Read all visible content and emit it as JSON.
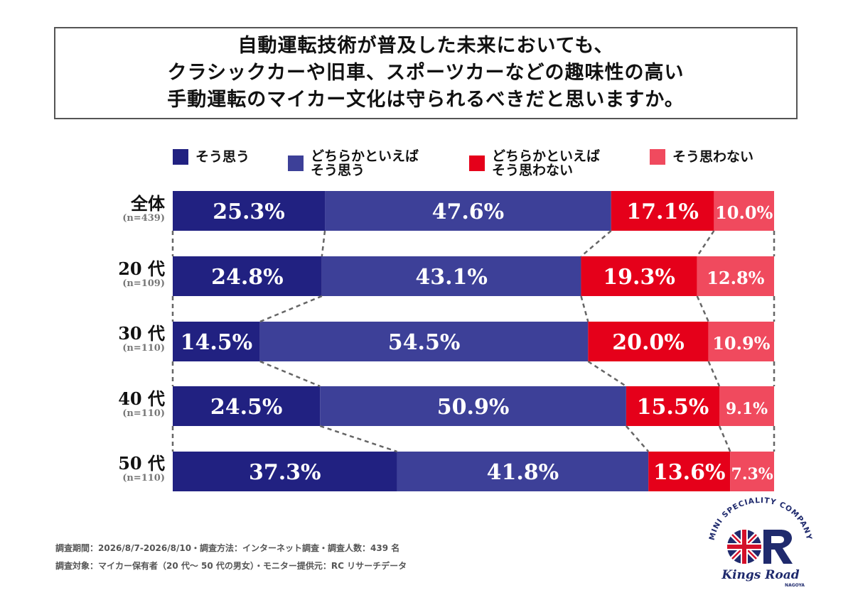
{
  "title_lines": [
    "自動運転技術が普及した未来においても、",
    "クラシックカーや旧車、スポーツカーなどの趣味性の高い",
    "手動運転のマイカー文化は守られるべきだと思いますか。"
  ],
  "legend": [
    {
      "label": "そう思う",
      "color": "#212181"
    },
    {
      "label": "どちらかといえば\nそう思う",
      "color": "#3d4098"
    },
    {
      "label": "どちらかといえば\nそう思わない",
      "color": "#e5001a"
    },
    {
      "label": "そう思わない",
      "color": "#f04a5e"
    }
  ],
  "chart_data": {
    "type": "bar",
    "orientation": "horizontal-stacked-100",
    "categories": [
      "全体",
      "20 代",
      "30 代",
      "40 代",
      "50 代"
    ],
    "sample_sizes": [
      "(n=439)",
      "(n=109)",
      "(n=110)",
      "(n=110)",
      "(n=110)"
    ],
    "series": [
      {
        "name": "そう思う",
        "values": [
          25.3,
          24.8,
          14.5,
          24.5,
          37.3
        ],
        "labels": [
          "25.3%",
          "24.8%",
          "14.5%",
          "24.5%",
          "37.3%"
        ],
        "color": "#212181"
      },
      {
        "name": "どちらかといえば\nそう思う",
        "values": [
          47.6,
          43.1,
          54.5,
          50.9,
          41.8
        ],
        "labels": [
          "47.6%",
          "43.1%",
          "54.5%",
          "50.9%",
          "41.8%"
        ],
        "color": "#3d4098"
      },
      {
        "name": "どちらかといえば\nそう思わない",
        "values": [
          17.1,
          19.3,
          20.0,
          15.5,
          13.6
        ],
        "labels": [
          "17.1%",
          "19.3%",
          "20.0%",
          "15.5%",
          "13.6%"
        ],
        "color": "#e5001a"
      },
      {
        "name": "そう思わない",
        "values": [
          10.0,
          12.8,
          10.9,
          9.1,
          7.3
        ],
        "labels": [
          "10.0%",
          "12.8%",
          "10.9%",
          "9.1%",
          "7.3%"
        ],
        "color": "#f04a5e"
      }
    ],
    "connectors": "dashed",
    "grid": false
  },
  "footer": {
    "line1": "調査期間：2026/8/7-2026/8/10・調査方法：インターネット調査・調査人数：439 名",
    "line2": "調査対象：マイカー保有者（20 代～ 50 代の男女）・モニター提供元：RC リサーチデータ"
  },
  "logo": {
    "arc_text": "MINI SPECIALITY COMPANY",
    "name": "Kings Road",
    "sub": "NAGOYA"
  }
}
